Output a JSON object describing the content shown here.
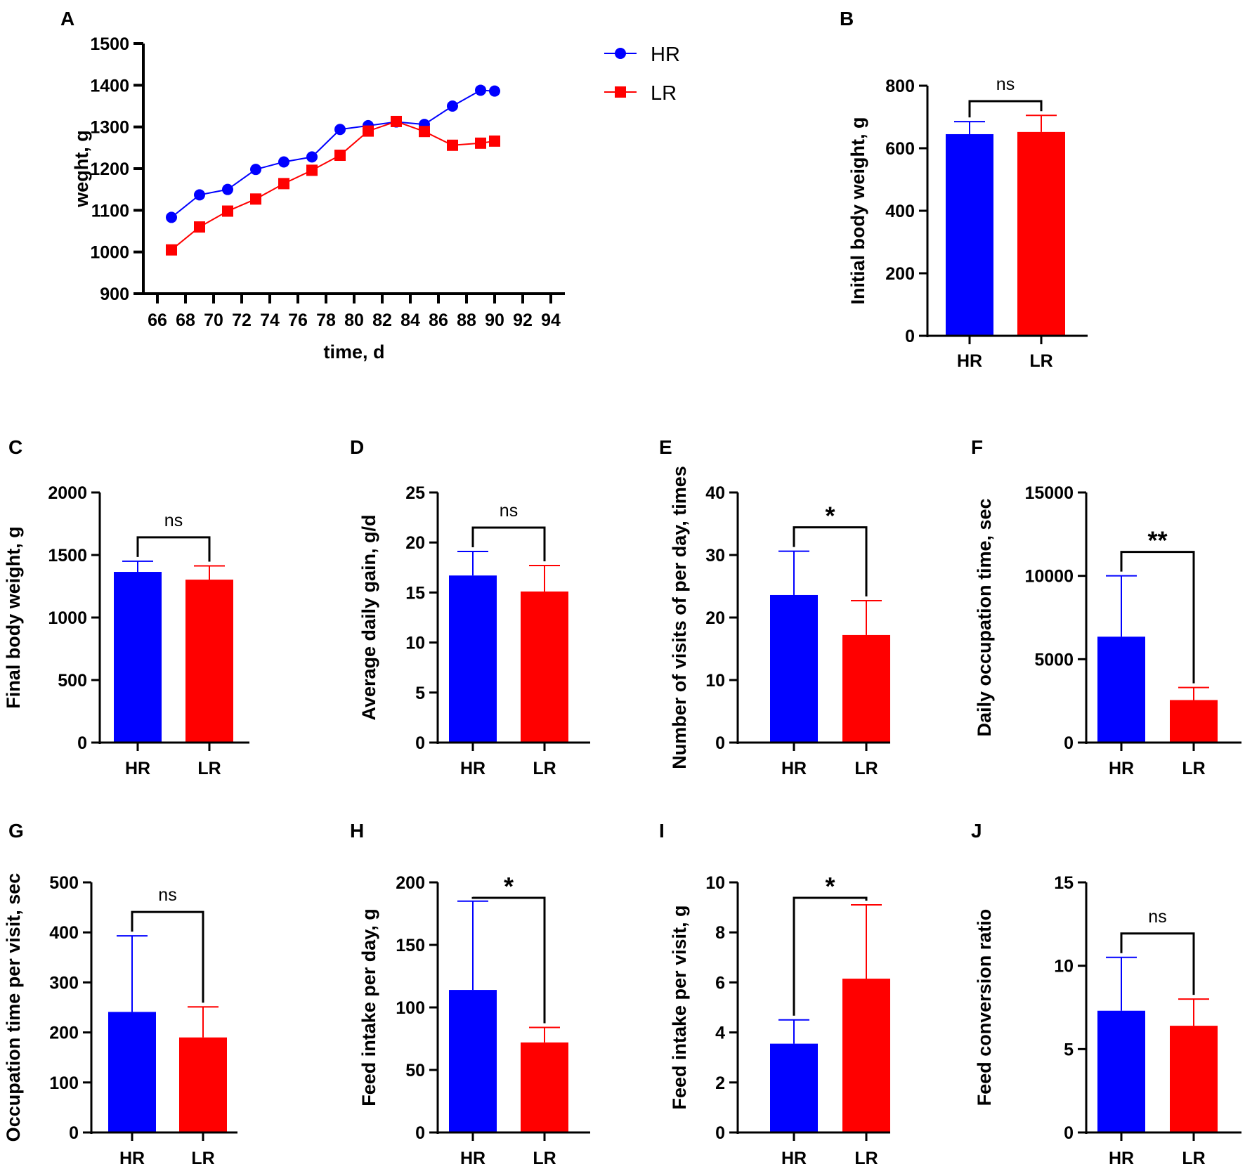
{
  "colors": {
    "HR": "#0000ff",
    "LR": "#ff0000",
    "axis": "#000000"
  },
  "chart_data": [
    {
      "panel": "A",
      "type": "line",
      "xlabel": "time, d",
      "ylabel": "weght, g",
      "ylim": [
        900,
        1500
      ],
      "yticks": [
        900,
        1000,
        1100,
        1200,
        1300,
        1400,
        1500
      ],
      "xlim": [
        65,
        95
      ],
      "xticks": [
        66,
        68,
        70,
        72,
        74,
        76,
        78,
        80,
        82,
        84,
        86,
        88,
        90,
        92,
        94
      ],
      "legend_position": "top-right",
      "series": [
        {
          "name": "HR",
          "marker": "circle",
          "x": [
            67,
            69,
            71,
            73,
            75,
            77,
            79,
            81,
            83,
            85,
            87,
            89,
            90
          ],
          "values": [
            1083,
            1137,
            1150,
            1198,
            1216,
            1228,
            1294,
            1303,
            1312,
            1306,
            1350,
            1388,
            1386
          ]
        },
        {
          "name": "LR",
          "marker": "square",
          "x": [
            67,
            69,
            71,
            73,
            75,
            77,
            79,
            81,
            83,
            85,
            87,
            89,
            90
          ],
          "values": [
            1005,
            1060,
            1098,
            1127,
            1164,
            1196,
            1232,
            1290,
            1313,
            1289,
            1256,
            1261,
            1266
          ]
        }
      ]
    },
    {
      "panel": "B",
      "type": "bar",
      "ylabel": "Initial body weight, g",
      "ylim": [
        0,
        800
      ],
      "yticks": [
        0,
        200,
        400,
        600,
        800
      ],
      "categories": [
        "HR",
        "LR"
      ],
      "values": [
        645,
        652
      ],
      "errors": [
        40,
        53
      ],
      "significance": "ns"
    },
    {
      "panel": "C",
      "type": "bar",
      "ylabel": "Final body weight, g",
      "ylim": [
        0,
        2000
      ],
      "yticks": [
        0,
        500,
        1000,
        1500,
        2000
      ],
      "categories": [
        "HR",
        "LR"
      ],
      "values": [
        1365,
        1303
      ],
      "errors": [
        85,
        110
      ],
      "significance": "ns"
    },
    {
      "panel": "D",
      "type": "bar",
      "ylabel": "Average daily gain, g/d",
      "ylim": [
        0,
        25
      ],
      "yticks": [
        0,
        5,
        10,
        15,
        20,
        25
      ],
      "categories": [
        "HR",
        "LR"
      ],
      "values": [
        16.7,
        15.1
      ],
      "errors": [
        2.4,
        2.6
      ],
      "significance": "ns"
    },
    {
      "panel": "E",
      "type": "bar",
      "ylabel": "Number of visits of per day, times",
      "ylim": [
        0,
        40
      ],
      "yticks": [
        0,
        10,
        20,
        30,
        40
      ],
      "categories": [
        "HR",
        "LR"
      ],
      "values": [
        23.6,
        17.2
      ],
      "errors": [
        7.0,
        5.5
      ],
      "significance": "*"
    },
    {
      "panel": "F",
      "type": "bar",
      "ylabel": "Daily occupation time, sec",
      "ylim": [
        0,
        15000
      ],
      "yticks": [
        0,
        5000,
        10000,
        15000
      ],
      "categories": [
        "HR",
        "LR"
      ],
      "values": [
        6350,
        2550
      ],
      "errors": [
        3650,
        750
      ],
      "significance": "**"
    },
    {
      "panel": "G",
      "type": "bar",
      "ylabel": "Occupation time per visit, sec",
      "ylim": [
        0,
        500
      ],
      "yticks": [
        0,
        100,
        200,
        300,
        400,
        500
      ],
      "categories": [
        "HR",
        "LR"
      ],
      "values": [
        241,
        190
      ],
      "errors": [
        152,
        61
      ],
      "significance": "ns"
    },
    {
      "panel": "H",
      "type": "bar",
      "ylabel": "Feed intake per day, g",
      "ylim": [
        0,
        200
      ],
      "yticks": [
        0,
        50,
        100,
        150,
        200
      ],
      "categories": [
        "HR",
        "LR"
      ],
      "values": [
        114,
        72
      ],
      "errors": [
        71,
        12
      ],
      "significance": "*"
    },
    {
      "panel": "I",
      "type": "bar",
      "ylabel": "Feed intake per visit, g",
      "ylim": [
        0,
        10
      ],
      "yticks": [
        0,
        2,
        4,
        6,
        8,
        10
      ],
      "categories": [
        "HR",
        "LR"
      ],
      "values": [
        3.55,
        6.15
      ],
      "errors": [
        0.95,
        2.95
      ],
      "significance": "*"
    },
    {
      "panel": "J",
      "type": "bar",
      "ylabel": "Feed conversion ratio",
      "ylim": [
        0,
        15
      ],
      "yticks": [
        0,
        5,
        10,
        15
      ],
      "categories": [
        "HR",
        "LR"
      ],
      "values": [
        7.3,
        6.4
      ],
      "errors": [
        3.2,
        1.6
      ],
      "significance": "ns"
    }
  ]
}
